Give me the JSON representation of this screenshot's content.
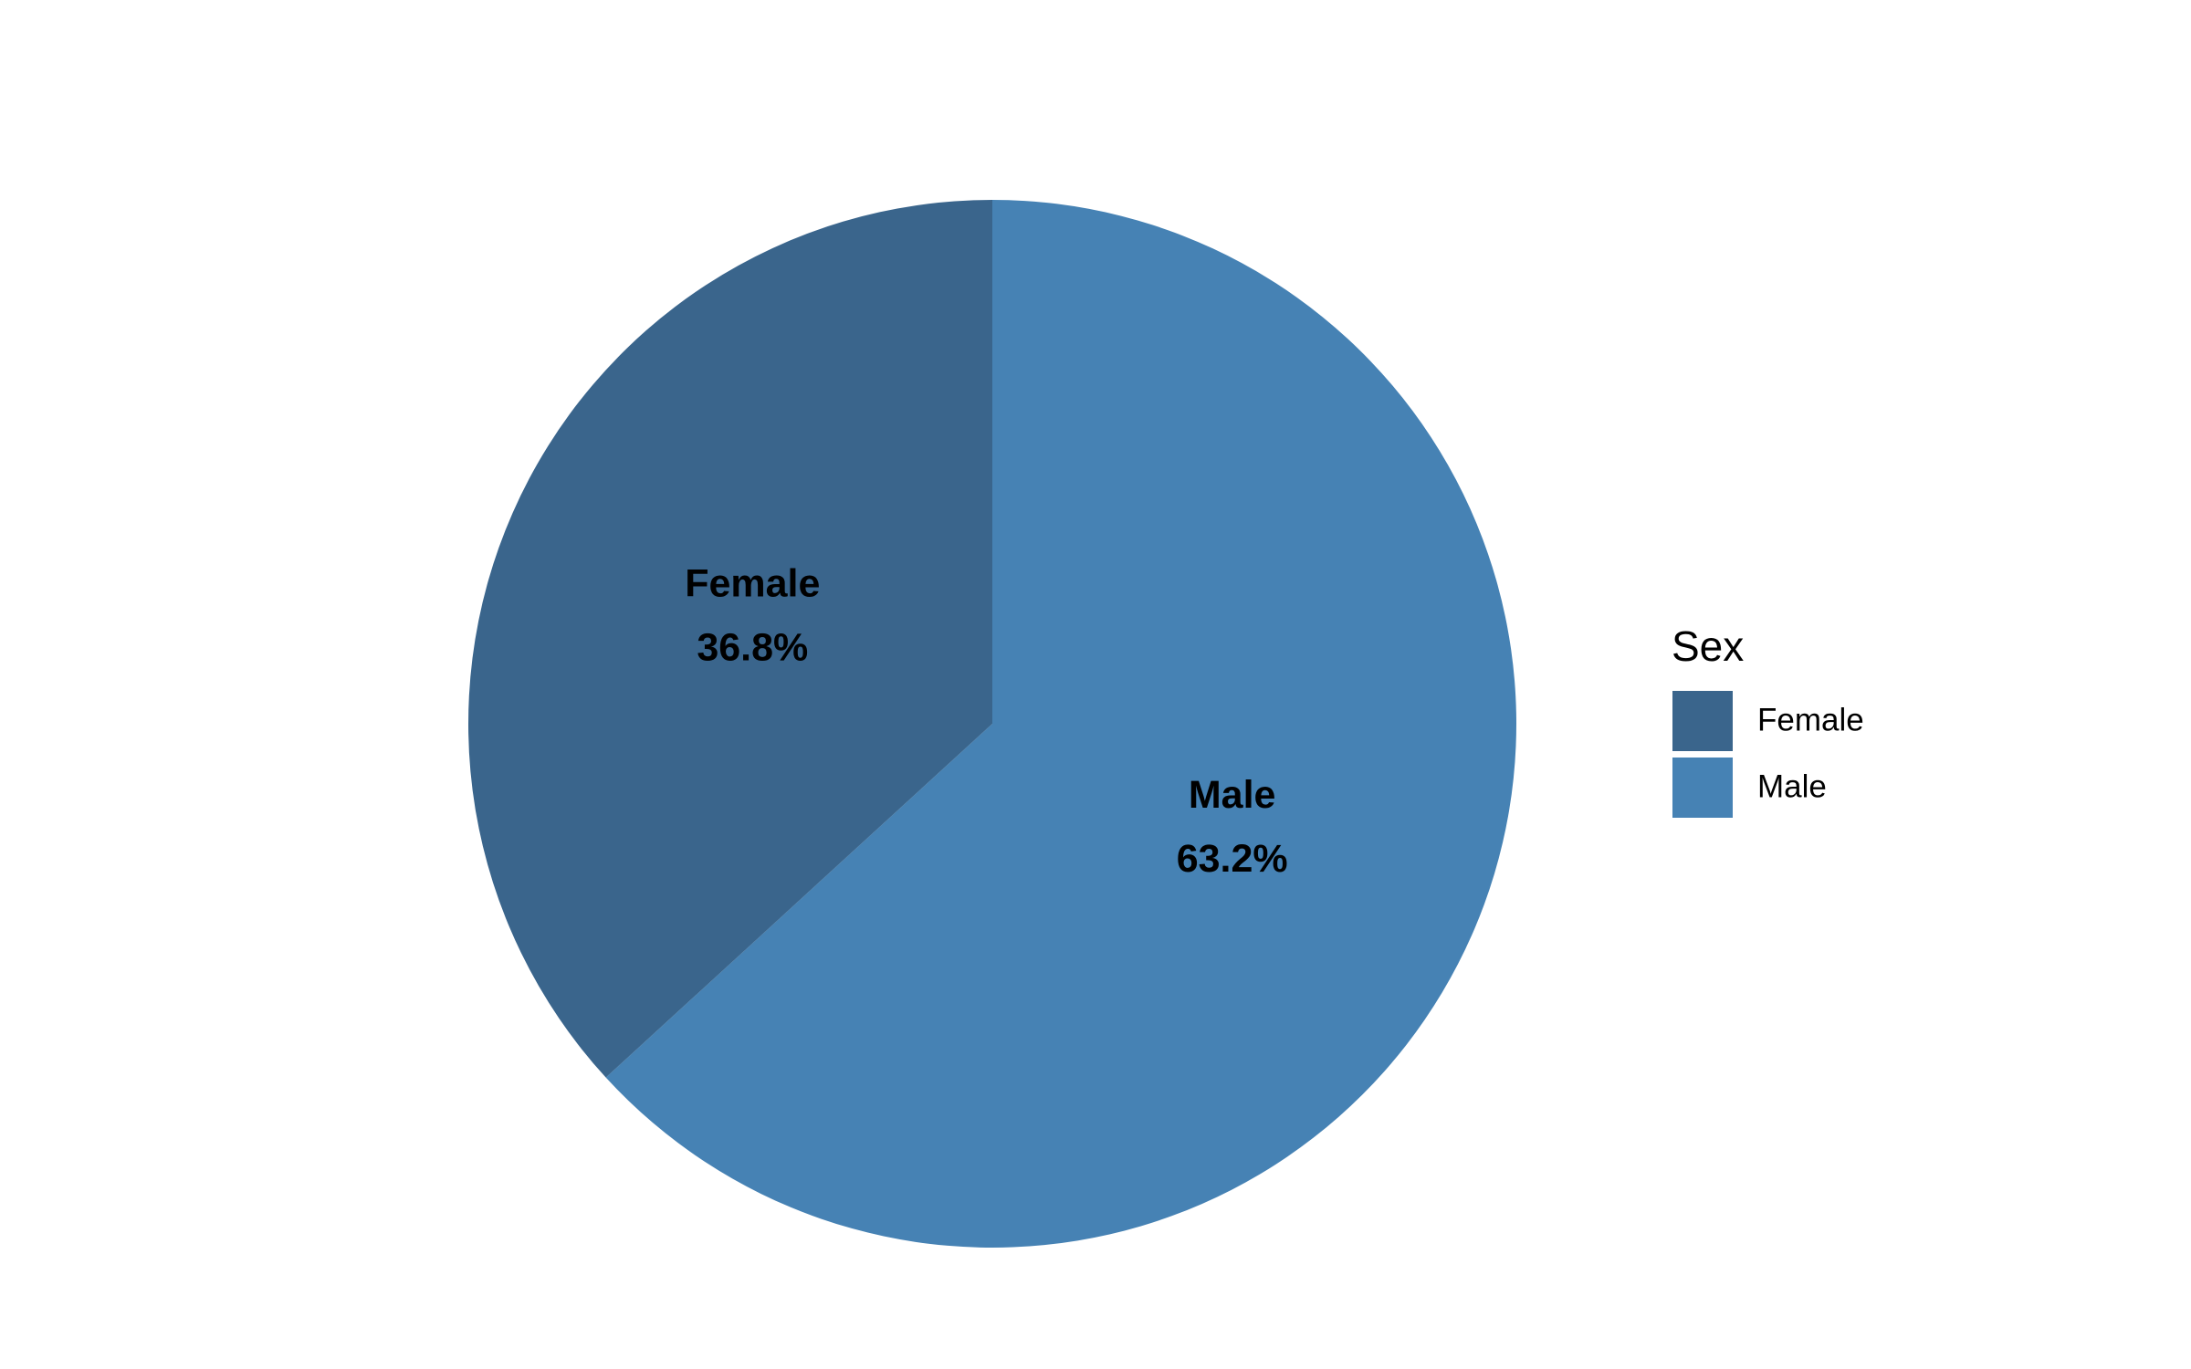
{
  "chart_data": {
    "type": "pie",
    "legend_title": "Sex",
    "categories": [
      "Female",
      "Male"
    ],
    "values": [
      36.8,
      63.2
    ],
    "value_labels": [
      "36.8%",
      "63.2%"
    ],
    "colors": [
      "#3a658c",
      "#4682b4"
    ]
  }
}
